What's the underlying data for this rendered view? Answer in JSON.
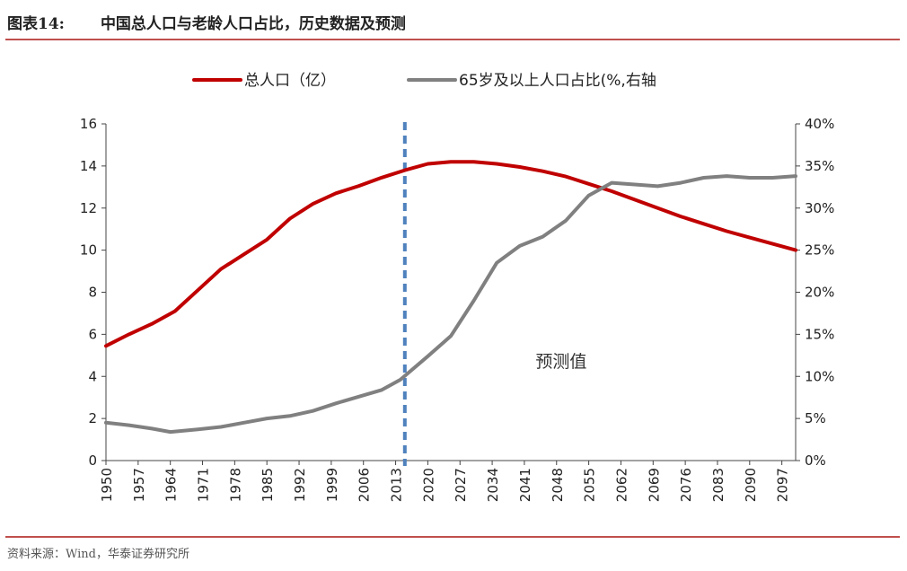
{
  "header": {
    "label": "图表14:",
    "title": "中国总人口与老龄人口占比，历史数据及预测"
  },
  "source": "资料来源：Wind，华泰证券研究所",
  "chart_data": {
    "type": "line",
    "title": "中国总人口与老龄人口占比，历史数据及预测",
    "legend_position": "top",
    "grid": false,
    "x_range": [
      1950,
      2100
    ],
    "x_ticks": [
      "1950",
      "1957",
      "1964",
      "1971",
      "1978",
      "1985",
      "1992",
      "1999",
      "2006",
      "2013",
      "2020",
      "2027",
      "2034",
      "2041",
      "2048",
      "2055",
      "2062",
      "2069",
      "2076",
      "2083",
      "2090",
      "2097"
    ],
    "y_left": {
      "min": 0,
      "max": 16,
      "ticks": [
        "0",
        "2",
        "4",
        "6",
        "8",
        "10",
        "12",
        "14",
        "16"
      ]
    },
    "y_right": {
      "min": 0,
      "max": 40,
      "ticks": [
        "0%",
        "5%",
        "10%",
        "15%",
        "20%",
        "25%",
        "30%",
        "35%",
        "40%"
      ]
    },
    "forecast_start": 2015,
    "annotation": "预测值",
    "series": [
      {
        "name": "总人口（亿）",
        "axis": "left",
        "color": "#c00000",
        "points": [
          [
            1950,
            5.45
          ],
          [
            1955,
            6.0
          ],
          [
            1960,
            6.5
          ],
          [
            1965,
            7.1
          ],
          [
            1970,
            8.1
          ],
          [
            1975,
            9.1
          ],
          [
            1980,
            9.8
          ],
          [
            1985,
            10.5
          ],
          [
            1990,
            11.5
          ],
          [
            1995,
            12.2
          ],
          [
            2000,
            12.7
          ],
          [
            2005,
            13.05
          ],
          [
            2010,
            13.45
          ],
          [
            2015,
            13.8
          ],
          [
            2020,
            14.1
          ],
          [
            2025,
            14.2
          ],
          [
            2030,
            14.2
          ],
          [
            2035,
            14.1
          ],
          [
            2040,
            13.95
          ],
          [
            2045,
            13.75
          ],
          [
            2050,
            13.5
          ],
          [
            2055,
            13.15
          ],
          [
            2060,
            12.8
          ],
          [
            2065,
            12.4
          ],
          [
            2070,
            12.0
          ],
          [
            2075,
            11.6
          ],
          [
            2080,
            11.25
          ],
          [
            2085,
            10.9
          ],
          [
            2090,
            10.6
          ],
          [
            2095,
            10.3
          ],
          [
            2100,
            10.0
          ]
        ]
      },
      {
        "name": "65岁及以上人口占比(%,右轴",
        "axis": "right",
        "color": "#808080",
        "points": [
          [
            1950,
            4.5
          ],
          [
            1955,
            4.2
          ],
          [
            1960,
            3.8
          ],
          [
            1964,
            3.4
          ],
          [
            1970,
            3.7
          ],
          [
            1975,
            4.0
          ],
          [
            1980,
            4.5
          ],
          [
            1985,
            5.0
          ],
          [
            1990,
            5.3
          ],
          [
            1995,
            5.9
          ],
          [
            2000,
            6.8
          ],
          [
            2005,
            7.6
          ],
          [
            2010,
            8.4
          ],
          [
            2014,
            9.6
          ],
          [
            2020,
            12.4
          ],
          [
            2025,
            14.8
          ],
          [
            2030,
            19.0
          ],
          [
            2035,
            23.5
          ],
          [
            2040,
            25.5
          ],
          [
            2045,
            26.6
          ],
          [
            2050,
            28.5
          ],
          [
            2055,
            31.5
          ],
          [
            2060,
            33.0
          ],
          [
            2065,
            32.8
          ],
          [
            2070,
            32.6
          ],
          [
            2075,
            33.0
          ],
          [
            2080,
            33.6
          ],
          [
            2085,
            33.8
          ],
          [
            2090,
            33.6
          ],
          [
            2095,
            33.6
          ],
          [
            2100,
            33.8
          ]
        ]
      }
    ]
  }
}
